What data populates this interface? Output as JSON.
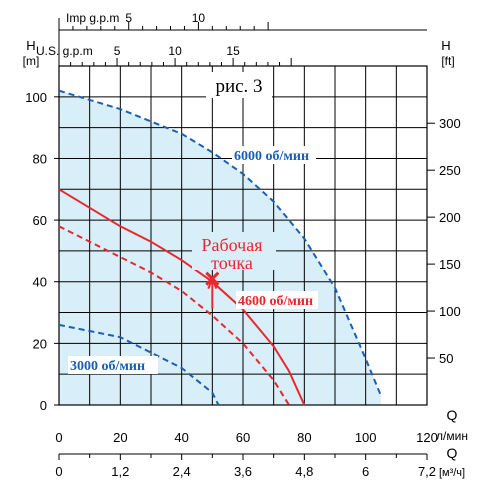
{
  "chart_data": {
    "type": "line",
    "title": "рис. 3",
    "colors": {
      "envelope_fill": "#d8eef8",
      "blue_curve": "#1a5fb4",
      "red_curve": "#e8282e",
      "grid": "#000000"
    },
    "axes": {
      "x_primary": {
        "label": "Q",
        "unit": "л/мин",
        "ticks": [
          0,
          20,
          40,
          60,
          80,
          100,
          120
        ],
        "range": [
          0,
          120
        ]
      },
      "x_secondary": {
        "label": "Q",
        "unit": "[м³/ч]",
        "ticks": [
          "0",
          "1,2",
          "2,4",
          "3,6",
          "4,8",
          "6",
          "7,2"
        ]
      },
      "x_top_us": {
        "label": "U.S. g.p.m",
        "ticks": [
          5,
          10,
          15
        ]
      },
      "x_top_imp": {
        "label": "Imp g.p.m",
        "ticks": [
          5,
          10
        ]
      },
      "y_left": {
        "label": "H",
        "unit": "[m]",
        "ticks": [
          0,
          20,
          40,
          60,
          80,
          100
        ],
        "range": [
          0,
          110
        ]
      },
      "y_right": {
        "label": "H",
        "unit": "[ft]",
        "ticks": [
          50,
          100,
          150,
          200,
          250,
          300
        ]
      }
    },
    "series": [
      {
        "name": "6000 об/мин",
        "style": "dashed",
        "color": "#1a5fb4",
        "x": [
          0,
          10,
          20,
          30,
          40,
          50,
          60,
          70,
          80,
          90,
          100,
          105
        ],
        "y": [
          102,
          99,
          96,
          92,
          88,
          82,
          75,
          66,
          54,
          38,
          15,
          3
        ]
      },
      {
        "name": "4600 об/мин",
        "style": "solid",
        "color": "#e8282e",
        "x": [
          0,
          10,
          20,
          30,
          40,
          50,
          60,
          70,
          75,
          80
        ],
        "y": [
          70,
          64,
          58,
          53,
          47,
          40,
          31,
          19,
          11,
          0
        ]
      },
      {
        "name": "",
        "style": "dashed",
        "color": "#e8282e",
        "x": [
          0,
          10,
          20,
          30,
          40,
          50,
          60,
          70,
          75
        ],
        "y": [
          58,
          53,
          48,
          43,
          37,
          29,
          20,
          8,
          0
        ]
      },
      {
        "name": "3000 об/мин",
        "style": "dashed",
        "color": "#1a5fb4",
        "x": [
          0,
          10,
          20,
          30,
          40,
          50,
          52
        ],
        "y": [
          26,
          24,
          22,
          17,
          12,
          4,
          0
        ]
      }
    ],
    "operating_point": {
      "label_line1": "Рабочая",
      "label_line2": "точка",
      "x": 50,
      "y": 41
    }
  }
}
